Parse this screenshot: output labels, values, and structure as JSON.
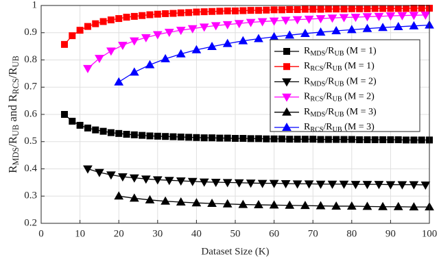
{
  "chart_data": {
    "type": "line",
    "x_label": "Dataset Size (K)",
    "y_label": "R_MDS/R_UB and R_RCS/R_UB",
    "xlim": [
      0,
      100
    ],
    "xticks": [
      0,
      10,
      20,
      30,
      40,
      50,
      60,
      70,
      80,
      90,
      100
    ],
    "ylim": [
      0.2,
      1
    ],
    "yticks": [
      0.2,
      0.3,
      0.4,
      0.5,
      0.6,
      0.7,
      0.8,
      0.9,
      1
    ],
    "grid": true,
    "legend": "right",
    "series": [
      {
        "name": "R_MDS/R_UB (M = 1)",
        "color": "#000000",
        "marker": "square",
        "x": [
          6,
          8,
          10,
          12,
          14,
          16,
          18,
          20,
          22,
          24,
          26,
          28,
          30,
          32,
          34,
          36,
          38,
          40,
          42,
          44,
          46,
          48,
          50,
          52,
          54,
          56,
          58,
          60,
          62,
          64,
          66,
          68,
          70,
          72,
          74,
          76,
          78,
          80,
          82,
          84,
          86,
          88,
          90,
          92,
          94,
          96,
          98,
          100
        ],
        "values": [
          0.6,
          0.575,
          0.56,
          0.55,
          0.543,
          0.538,
          0.533,
          0.53,
          0.527,
          0.525,
          0.523,
          0.521,
          0.52,
          0.519,
          0.518,
          0.517,
          0.516,
          0.515,
          0.514,
          0.514,
          0.513,
          0.513,
          0.512,
          0.512,
          0.511,
          0.511,
          0.51,
          0.51,
          0.51,
          0.509,
          0.509,
          0.509,
          0.509,
          0.508,
          0.508,
          0.508,
          0.508,
          0.508,
          0.507,
          0.507,
          0.507,
          0.507,
          0.507,
          0.507,
          0.506,
          0.506,
          0.506,
          0.506
        ]
      },
      {
        "name": "R_RCS/R_UB (M = 1)",
        "color": "#ff0000",
        "marker": "square",
        "x": [
          6,
          8,
          10,
          12,
          14,
          16,
          18,
          20,
          22,
          24,
          26,
          28,
          30,
          32,
          34,
          36,
          38,
          40,
          42,
          44,
          46,
          48,
          50,
          52,
          54,
          56,
          58,
          60,
          62,
          64,
          66,
          68,
          70,
          72,
          74,
          76,
          78,
          80,
          82,
          84,
          86,
          88,
          90,
          92,
          94,
          96,
          98,
          100
        ],
        "values": [
          0.857,
          0.889,
          0.909,
          0.923,
          0.933,
          0.941,
          0.947,
          0.952,
          0.957,
          0.96,
          0.963,
          0.966,
          0.968,
          0.97,
          0.971,
          0.973,
          0.974,
          0.976,
          0.977,
          0.978,
          0.979,
          0.98,
          0.98,
          0.981,
          0.982,
          0.982,
          0.983,
          0.984,
          0.984,
          0.985,
          0.985,
          0.986,
          0.986,
          0.986,
          0.987,
          0.987,
          0.987,
          0.988,
          0.988,
          0.988,
          0.989,
          0.989,
          0.989,
          0.989,
          0.989,
          0.99,
          0.99,
          0.99
        ]
      },
      {
        "name": "R_MDS/R_UB (M = 2)",
        "color": "#000000",
        "marker": "down",
        "x": [
          12,
          15,
          18,
          21,
          24,
          27,
          30,
          33,
          36,
          39,
          42,
          45,
          48,
          51,
          54,
          57,
          60,
          63,
          66,
          69,
          72,
          75,
          78,
          81,
          84,
          87,
          90,
          93,
          96,
          99
        ],
        "values": [
          0.4,
          0.387,
          0.378,
          0.371,
          0.367,
          0.363,
          0.36,
          0.358,
          0.356,
          0.354,
          0.352,
          0.351,
          0.35,
          0.349,
          0.348,
          0.347,
          0.347,
          0.346,
          0.345,
          0.345,
          0.344,
          0.344,
          0.344,
          0.343,
          0.343,
          0.343,
          0.342,
          0.342,
          0.342,
          0.341
        ]
      },
      {
        "name": "R_RCS/R_UB (M = 2)",
        "color": "#ff00ff",
        "marker": "down",
        "x": [
          12,
          15,
          18,
          21,
          24,
          27,
          30,
          33,
          36,
          39,
          42,
          45,
          48,
          51,
          54,
          57,
          60,
          63,
          66,
          69,
          72,
          75,
          78,
          81,
          84,
          87,
          90,
          93,
          96,
          99
        ],
        "values": [
          0.769,
          0.806,
          0.833,
          0.854,
          0.87,
          0.882,
          0.893,
          0.902,
          0.909,
          0.915,
          0.921,
          0.926,
          0.93,
          0.934,
          0.938,
          0.941,
          0.943,
          0.946,
          0.948,
          0.95,
          0.952,
          0.954,
          0.956,
          0.957,
          0.959,
          0.96,
          0.962,
          0.963,
          0.964,
          0.965
        ]
      },
      {
        "name": "R_MDS/R_UB (M = 3)",
        "color": "#000000",
        "marker": "up",
        "x": [
          20,
          24,
          28,
          32,
          36,
          40,
          44,
          48,
          52,
          56,
          60,
          64,
          68,
          72,
          76,
          80,
          84,
          88,
          92,
          96,
          100
        ],
        "values": [
          0.3,
          0.292,
          0.286,
          0.281,
          0.278,
          0.275,
          0.273,
          0.271,
          0.269,
          0.268,
          0.267,
          0.266,
          0.265,
          0.264,
          0.263,
          0.263,
          0.262,
          0.261,
          0.261,
          0.26,
          0.26
        ]
      },
      {
        "name": "R_RCS/R_UB (M = 3)",
        "color": "#0000ff",
        "marker": "up",
        "x": [
          20,
          24,
          28,
          32,
          36,
          40,
          44,
          48,
          52,
          56,
          60,
          64,
          68,
          72,
          76,
          80,
          84,
          88,
          92,
          96,
          100
        ],
        "values": [
          0.719,
          0.755,
          0.782,
          0.804,
          0.822,
          0.837,
          0.849,
          0.86,
          0.87,
          0.878,
          0.885,
          0.891,
          0.897,
          0.902,
          0.907,
          0.911,
          0.915,
          0.919,
          0.922,
          0.925,
          0.928
        ]
      }
    ]
  }
}
